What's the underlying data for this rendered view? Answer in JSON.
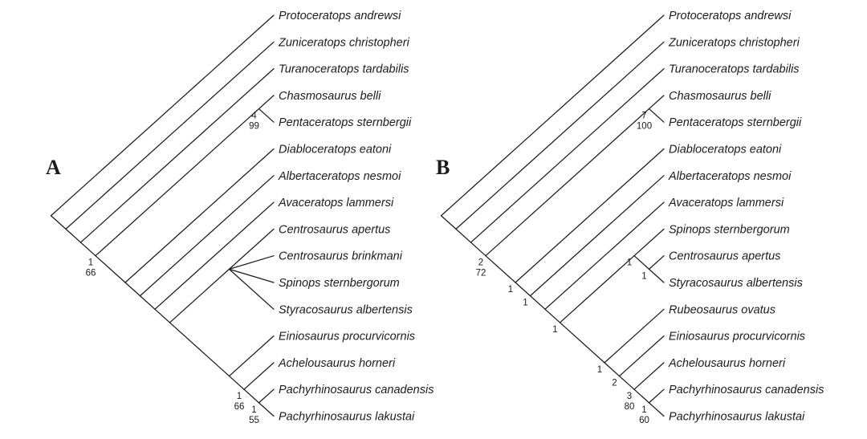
{
  "figure": {
    "type": "cladogram-pair",
    "background_color": "#ffffff",
    "ink_color": "#1c1c1c"
  },
  "panels": [
    {
      "letter": "A",
      "tree": {
        "children": [
          {
            "name": "Protoceratops andrewsi"
          },
          {
            "children": [
              {
                "name": "Zuniceratops christopheri"
              },
              {
                "children": [
                  {
                    "name": "Turanoceratops tardabilis"
                  },
                  {
                    "support": [
                      "1",
                      "66"
                    ],
                    "children": [
                      {
                        "support": [
                          "4",
                          "99"
                        ],
                        "children": [
                          {
                            "name": "Chasmosaurus belli"
                          },
                          {
                            "name": "Pentaceratops sternbergii"
                          }
                        ]
                      },
                      {
                        "children": [
                          {
                            "name": "Diabloceratops eatoni"
                          },
                          {
                            "children": [
                              {
                                "name": "Albertaceratops nesmoi"
                              },
                              {
                                "children": [
                                  {
                                    "name": "Avaceratops lammersi"
                                  },
                                  {
                                    "children": [
                                      {
                                        "children": [
                                          {
                                            "name": "Centrosaurus apertus"
                                          },
                                          {
                                            "name": "Centrosaurus brinkmani"
                                          },
                                          {
                                            "name": "Spinops sternbergorum"
                                          },
                                          {
                                            "name": "Styracosaurus albertensis"
                                          }
                                        ]
                                      },
                                      {
                                        "children": [
                                          {
                                            "name": "Einiosaurus procurvicornis"
                                          },
                                          {
                                            "support": [
                                              "1",
                                              "66"
                                            ],
                                            "children": [
                                              {
                                                "name": "Achelousaurus horneri"
                                              },
                                              {
                                                "support": [
                                                  "1",
                                                  "55"
                                                ],
                                                "children": [
                                                  {
                                                    "name": "Pachyrhinosaurus canadensis"
                                                  },
                                                  {
                                                    "name": "Pachyrhinosaurus lakustai"
                                                  }
                                                ]
                                              }
                                            ]
                                          }
                                        ]
                                      }
                                    ]
                                  }
                                ]
                              }
                            ]
                          }
                        ]
                      }
                    ]
                  }
                ]
              }
            ]
          }
        ]
      }
    },
    {
      "letter": "B",
      "tree": {
        "children": [
          {
            "name": "Protoceratops andrewsi"
          },
          {
            "children": [
              {
                "name": "Zuniceratops christopheri"
              },
              {
                "children": [
                  {
                    "name": "Turanoceratops tardabilis"
                  },
                  {
                    "support": [
                      "2",
                      "72"
                    ],
                    "children": [
                      {
                        "support": [
                          "7",
                          "100"
                        ],
                        "children": [
                          {
                            "name": "Chasmosaurus belli"
                          },
                          {
                            "name": "Pentaceratops sternbergii"
                          }
                        ]
                      },
                      {
                        "support": [
                          "1"
                        ],
                        "children": [
                          {
                            "name": "Diabloceratops eatoni"
                          },
                          {
                            "support": [
                              "1"
                            ],
                            "children": [
                              {
                                "name": "Albertaceratops nesmoi"
                              },
                              {
                                "children": [
                                  {
                                    "name": "Avaceratops lammersi"
                                  },
                                  {
                                    "support": [
                                      "1"
                                    ],
                                    "children": [
                                      {
                                        "support": [
                                          "1"
                                        ],
                                        "children": [
                                          {
                                            "name": "Spinops sternbergorum"
                                          },
                                          {
                                            "support": [
                                              "1"
                                            ],
                                            "children": [
                                              {
                                                "name": "Centrosaurus apertus"
                                              },
                                              {
                                                "name": "Styracosaurus albertensis"
                                              }
                                            ]
                                          }
                                        ]
                                      },
                                      {
                                        "support": [
                                          "1"
                                        ],
                                        "children": [
                                          {
                                            "name": "Rubeosaurus ovatus"
                                          },
                                          {
                                            "support": [
                                              "2"
                                            ],
                                            "children": [
                                              {
                                                "name": "Einiosaurus procurvicornis"
                                              },
                                              {
                                                "support": [
                                                  "3",
                                                  "80"
                                                ],
                                                "children": [
                                                  {
                                                    "name": "Achelousaurus horneri"
                                                  },
                                                  {
                                                    "support": [
                                                      "1",
                                                      "60"
                                                    ],
                                                    "children": [
                                                      {
                                                        "name": "Pachyrhinosaurus canadensis"
                                                      },
                                                      {
                                                        "name": "Pachyrhinosaurus lakustai"
                                                      }
                                                    ]
                                                  }
                                                ]
                                              }
                                            ]
                                          }
                                        ]
                                      }
                                    ]
                                  }
                                ]
                              }
                            ]
                          }
                        ]
                      }
                    ]
                  }
                ]
              }
            ]
          }
        ]
      }
    }
  ]
}
